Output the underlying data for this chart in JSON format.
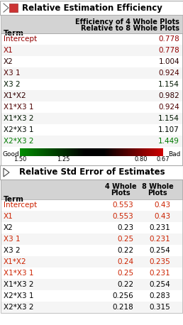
{
  "title1": "Relative Estimation Efficiency",
  "title2": "Relative Std Error of Estimates",
  "terms": [
    "Intercept",
    "X1",
    "X2",
    "X3 1",
    "X3 2",
    "X1*X2",
    "X1*X3 1",
    "X1*X3 2",
    "X2*X3 1",
    "X2*X3 2"
  ],
  "efficiency": [
    0.778,
    0.778,
    1.004,
    0.924,
    1.154,
    0.982,
    0.924,
    1.154,
    1.107,
    1.449
  ],
  "std_4wp": [
    0.553,
    0.553,
    0.23,
    0.25,
    0.22,
    0.24,
    0.25,
    0.22,
    0.256,
    0.218
  ],
  "std_8wp": [
    0.43,
    0.43,
    0.231,
    0.231,
    0.254,
    0.235,
    0.231,
    0.254,
    0.283,
    0.315
  ],
  "colorbar_labels": [
    "1.50",
    "1.25",
    "0.80",
    "0.67"
  ],
  "good_label": "Good",
  "bad_label": "Bad",
  "header_bg": "#d3d3d3",
  "border_color": "#aaaaaa",
  "row_bg_even": "#ffffff",
  "row_bg_odd": "#f5f5f5"
}
